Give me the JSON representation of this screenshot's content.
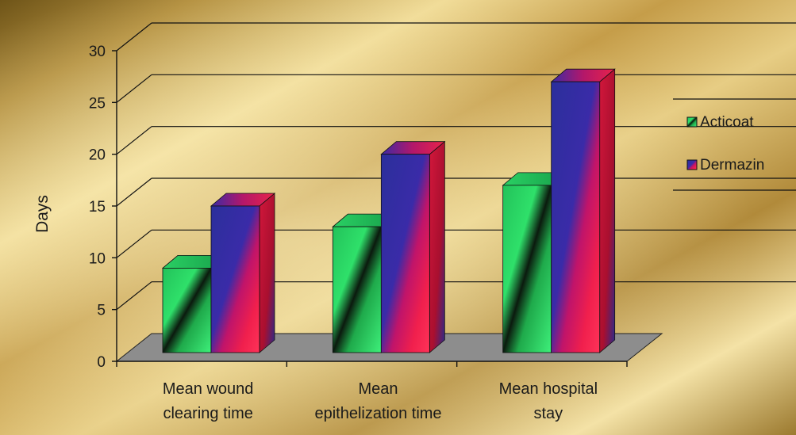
{
  "chart_data": {
    "type": "bar",
    "title": "",
    "xlabel": "",
    "ylabel": "Days",
    "ylim": [
      0,
      30
    ],
    "yticks": [
      0,
      5,
      10,
      15,
      20,
      25,
      30
    ],
    "grid": true,
    "three_d": true,
    "legend_position": "right",
    "categories": [
      [
        "Mean wound",
        "clearing time"
      ],
      [
        "Mean",
        "epithelization time"
      ],
      [
        "Mean hospital",
        "stay"
      ]
    ],
    "series": [
      {
        "name": "Acticoat",
        "values": [
          9,
          13,
          17
        ],
        "color": "#22c25a"
      },
      {
        "name": "Dermazin",
        "values": [
          15,
          20,
          27
        ],
        "color": "#e8234a"
      }
    ]
  },
  "colors": {
    "background_gold": "#c9a24a",
    "floor": "#8c8c8c",
    "gridline": "#111111",
    "dermazin_side": "#c4122f",
    "acticoat_side": "#1e9b45"
  }
}
